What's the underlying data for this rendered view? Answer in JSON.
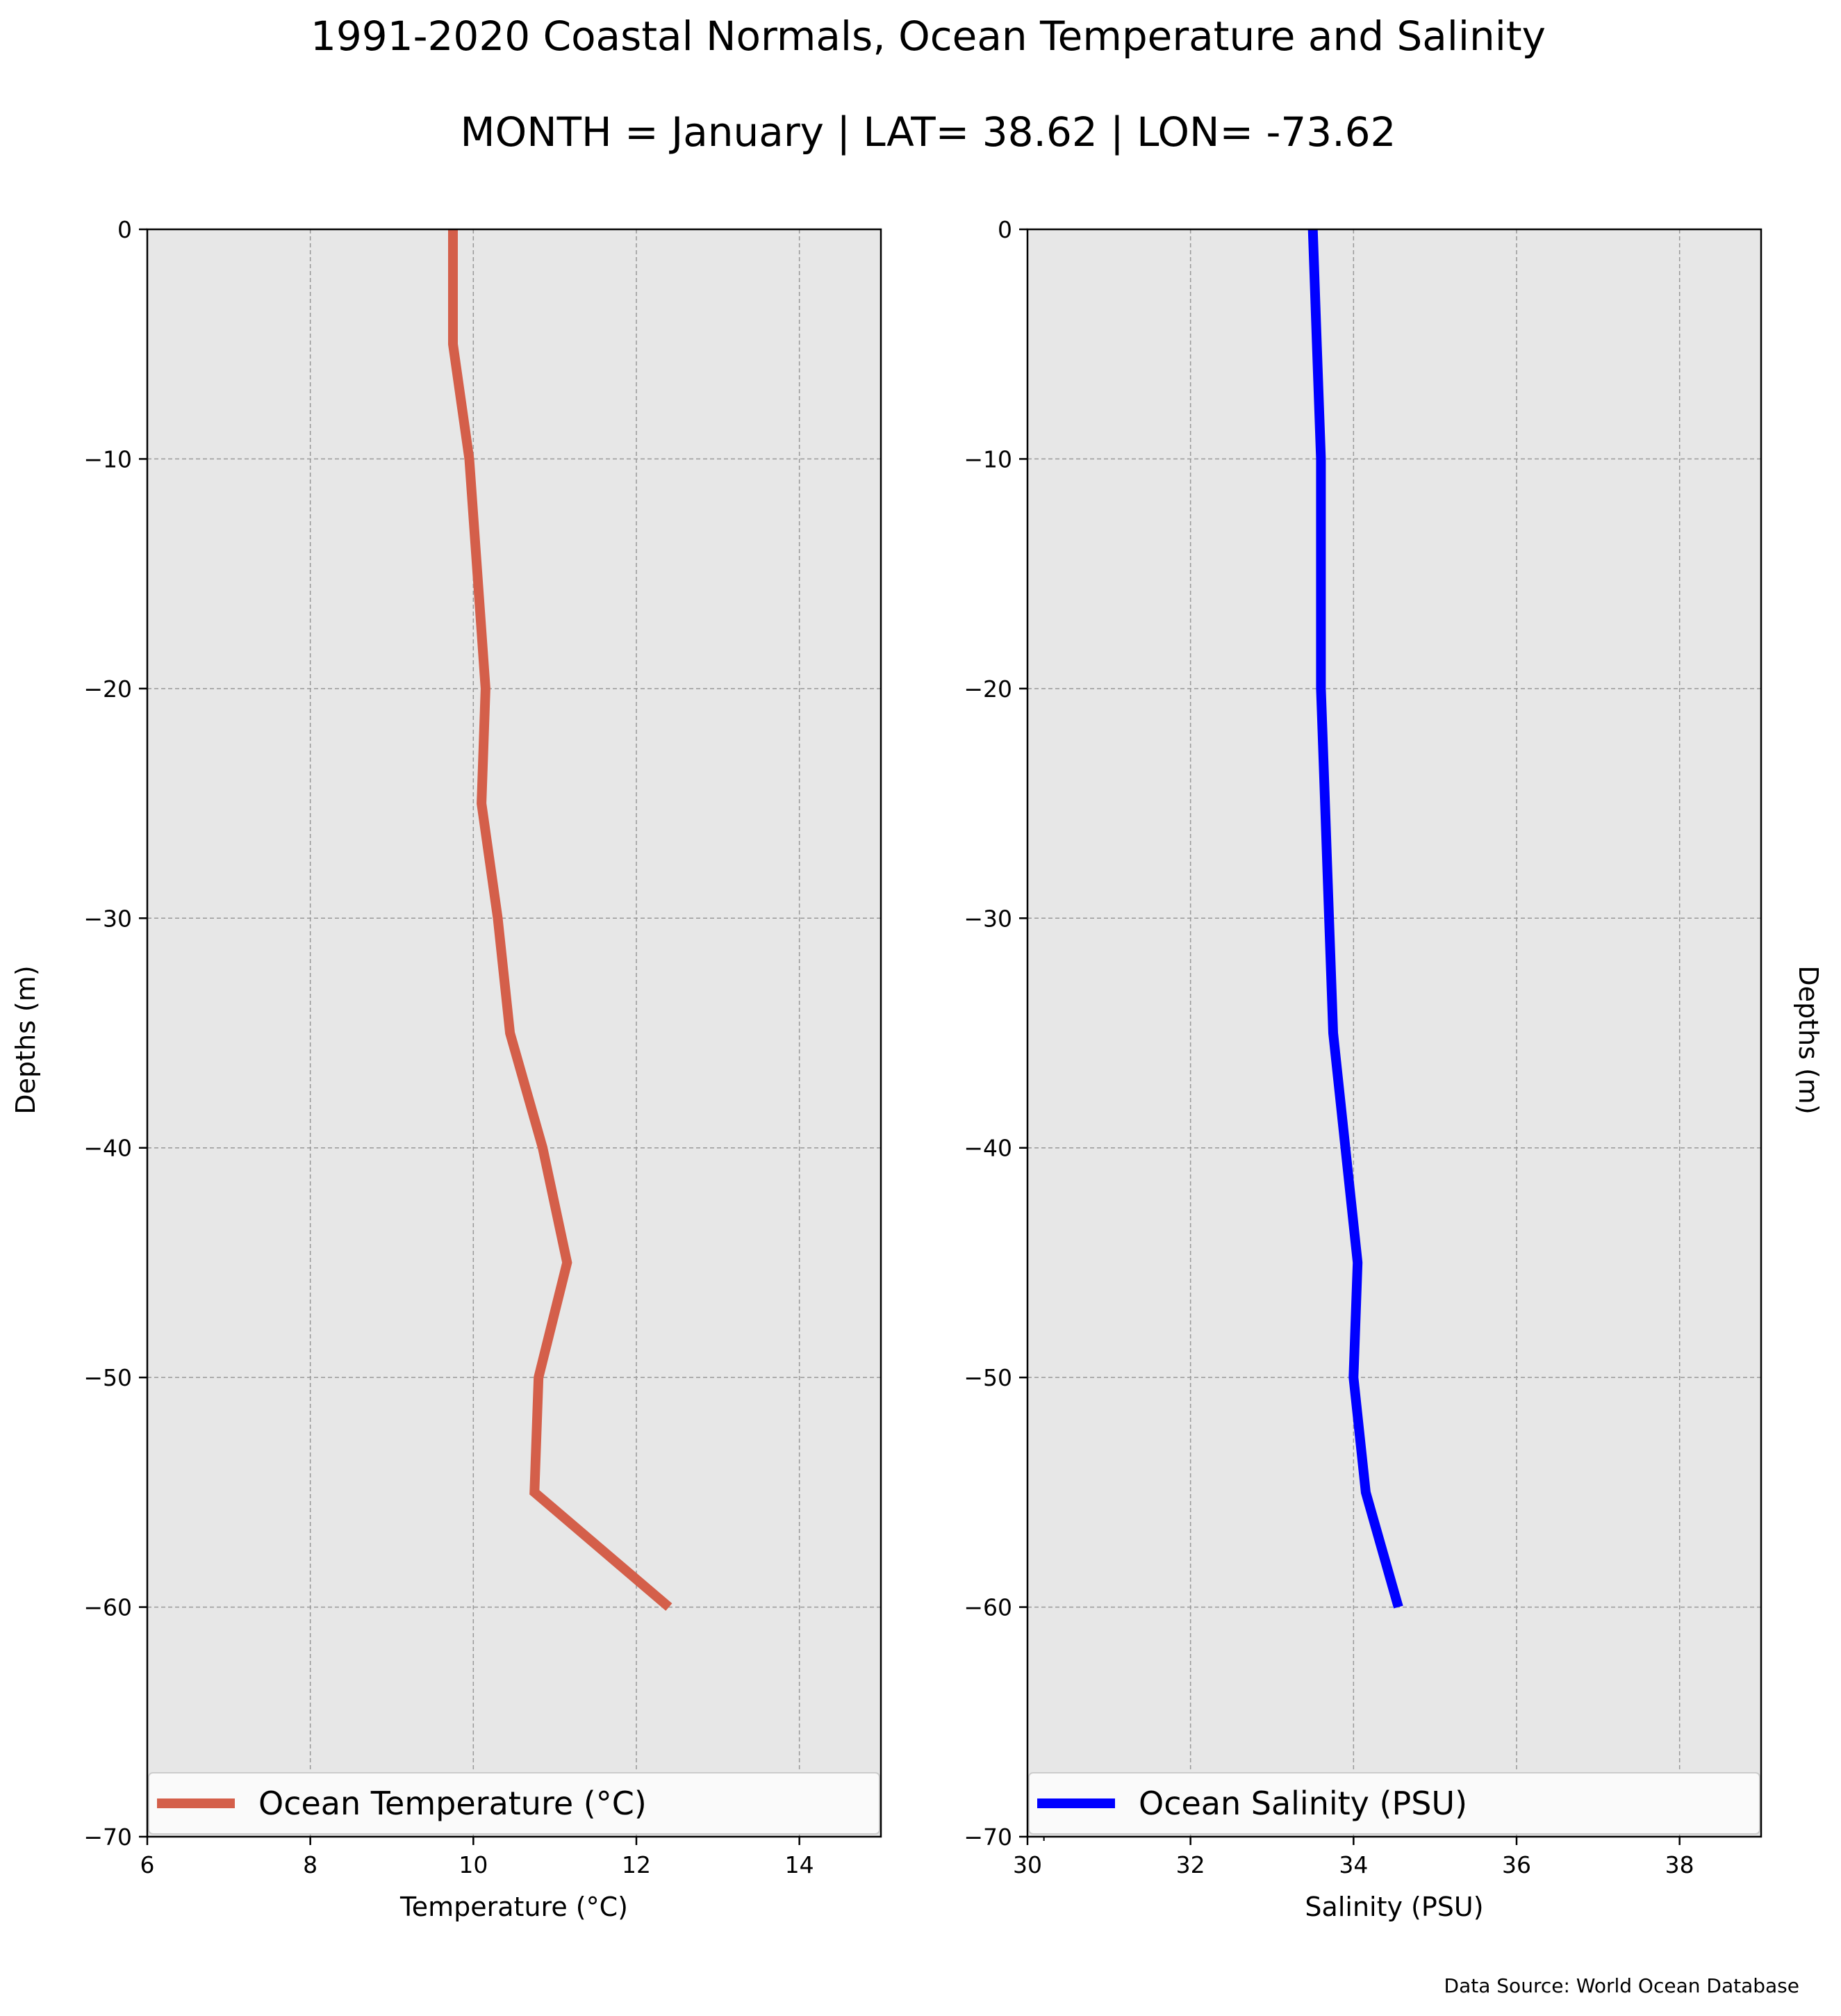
{
  "figure": {
    "title": "1991-2020 Coastal Normals, Ocean Temperature and Salinity",
    "subtitle": "MONTH = January | LAT= 38.62 | LON= -73.62",
    "source": "Data Source: World Ocean Database"
  },
  "chart_data": [
    {
      "type": "line",
      "xlabel": "Temperature (°C)",
      "ylabel": "Depths (m)",
      "xlim": [
        6,
        15
      ],
      "ylim": [
        -70,
        0
      ],
      "xticks": [
        6,
        8,
        10,
        12,
        14
      ],
      "yticks": [
        0,
        -10,
        -20,
        -30,
        -40,
        -50,
        -60,
        -70
      ],
      "grid": true,
      "legend_position": "bottom",
      "series": [
        {
          "name": "Ocean Temperature (°C)",
          "color": "#d45f4a",
          "x": [
            9.75,
            9.75,
            9.95,
            10.05,
            10.15,
            10.1,
            10.3,
            10.45,
            10.85,
            11.15,
            10.8,
            10.75,
            12.4
          ],
          "y": [
            0,
            -5,
            -10,
            -15,
            -20,
            -25,
            -30,
            -35,
            -40,
            -45,
            -50,
            -55,
            -60
          ]
        }
      ]
    },
    {
      "type": "line",
      "xlabel": "Salinity (PSU)",
      "ylabel": "Depths (m)",
      "xlim": [
        30,
        39
      ],
      "ylim": [
        -70,
        0
      ],
      "xticks": [
        30,
        32,
        34,
        36,
        38
      ],
      "yticks": [
        0,
        -10,
        -20,
        -30,
        -40,
        -50,
        -60,
        -70
      ],
      "grid": true,
      "legend_position": "bottom",
      "series": [
        {
          "name": "Ocean Salinity (PSU)",
          "color": "#0000ff",
          "x": [
            33.5,
            33.55,
            33.6,
            33.6,
            33.6,
            33.65,
            33.7,
            33.75,
            33.9,
            34.05,
            34.0,
            34.15,
            34.55
          ],
          "y": [
            0,
            -5,
            -10,
            -15,
            -20,
            -25,
            -30,
            -35,
            -40,
            -45,
            -50,
            -55,
            -60
          ]
        }
      ]
    }
  ]
}
